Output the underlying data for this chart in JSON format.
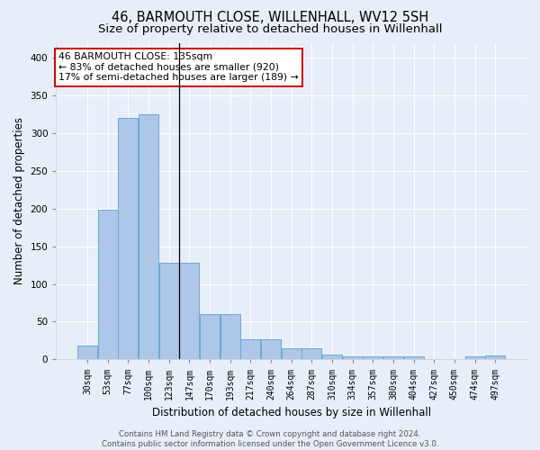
{
  "title": "46, BARMOUTH CLOSE, WILLENHALL, WV12 5SH",
  "subtitle": "Size of property relative to detached houses in Willenhall",
  "xlabel": "Distribution of detached houses by size in Willenhall",
  "ylabel": "Number of detached properties",
  "categories": [
    "30sqm",
    "53sqm",
    "77sqm",
    "100sqm",
    "123sqm",
    "147sqm",
    "170sqm",
    "193sqm",
    "217sqm",
    "240sqm",
    "264sqm",
    "287sqm",
    "310sqm",
    "334sqm",
    "357sqm",
    "380sqm",
    "404sqm",
    "427sqm",
    "450sqm",
    "474sqm",
    "497sqm"
  ],
  "values": [
    18,
    198,
    320,
    325,
    128,
    128,
    60,
    60,
    27,
    27,
    15,
    15,
    6,
    4,
    4,
    4,
    4,
    1,
    1,
    4,
    5
  ],
  "bar_color": "#aec6e8",
  "bar_edge_color": "#6aaad4",
  "vline_x": 4.5,
  "ylim": [
    0,
    420
  ],
  "yticks": [
    0,
    50,
    100,
    150,
    200,
    250,
    300,
    350,
    400
  ],
  "bg_color": "#e8eef8",
  "grid_color": "#ffffff",
  "annotation_line1": "46 BARMOUTH CLOSE: 135sqm",
  "annotation_line2": "← 83% of detached houses are smaller (920)",
  "annotation_line3": "17% of semi-detached houses are larger (189) →",
  "annotation_box_color": "white",
  "annotation_box_edge": "#cc0000",
  "footer_text": "Contains HM Land Registry data © Crown copyright and database right 2024.\nContains public sector information licensed under the Open Government Licence v3.0.",
  "title_fontsize": 10.5,
  "subtitle_fontsize": 9.5,
  "ylabel_fontsize": 8.5,
  "xlabel_fontsize": 8.5,
  "tick_fontsize": 7,
  "annot_fontsize": 7.8,
  "footer_fontsize": 6.2
}
